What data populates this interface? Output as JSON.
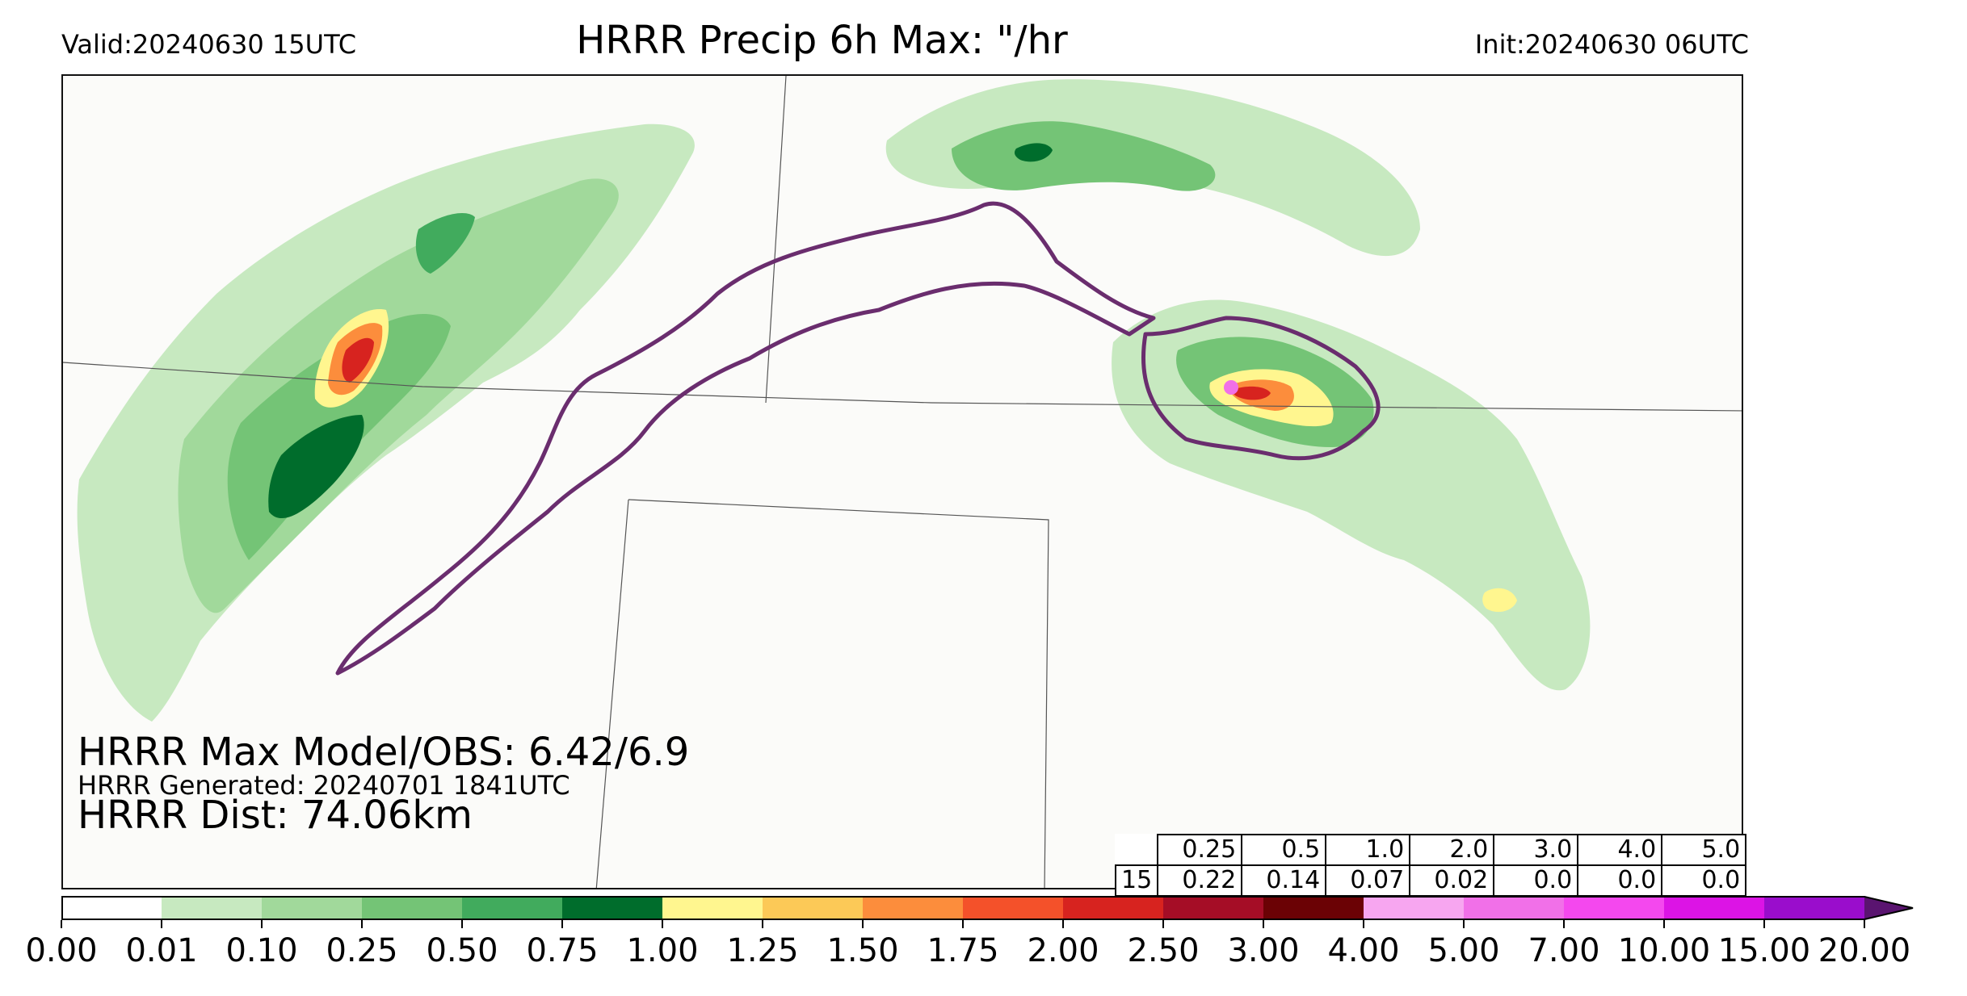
{
  "header": {
    "valid": "Valid:20240630 15UTC",
    "title": "HRRR Precip 6h Max: \"/hr",
    "init": "Init:20240630 06UTC"
  },
  "annotations": {
    "max_model_obs": "HRRR Max Model/OBS: 6.42/6.9",
    "generated": "HRRR Generated: 20240701 1841UTC",
    "dist": "HRRR Dist: 74.06km"
  },
  "stats_table": {
    "thresholds": [
      "0.25",
      "0.5",
      "1.0",
      "2.0",
      "3.0",
      "4.0",
      "5.0"
    ],
    "row_label": "15",
    "values": [
      "0.22",
      "0.14",
      "0.07",
      "0.02",
      "0.0",
      "0.0",
      "0.0"
    ]
  },
  "colorbar": {
    "labels": [
      "0.00",
      "0.01",
      "0.10",
      "0.25",
      "0.50",
      "0.75",
      "1.00",
      "1.25",
      "1.50",
      "1.75",
      "2.00",
      "2.50",
      "3.00",
      "4.00",
      "5.00",
      "7.00",
      "10.00",
      "15.00",
      "20.00"
    ],
    "colors": [
      "#ffffff",
      "#c7e9c0",
      "#a1d99b",
      "#74c476",
      "#41ab5d",
      "#006d2c",
      "#fff68f",
      "#fcc957",
      "#fc8d3c",
      "#f4512a",
      "#d7231f",
      "#a50d26",
      "#6b0205",
      "#f7a6f0",
      "#f170e8",
      "#f448ee",
      "#dc14e5",
      "#9a0dcc"
    ],
    "extend_color": "#5a1470"
  },
  "map_colors": {
    "light": "#c7e9c0",
    "green2": "#a1d99b",
    "green3": "#74c476",
    "green4": "#41ab5d",
    "dark": "#006d2c",
    "yellow": "#fff68f",
    "orange": "#fc8d3c",
    "red": "#d7231f",
    "darkred": "#a50d26",
    "magenta": "#f170e8",
    "obs_contour": "#6a2d6e",
    "border": "#555555"
  }
}
